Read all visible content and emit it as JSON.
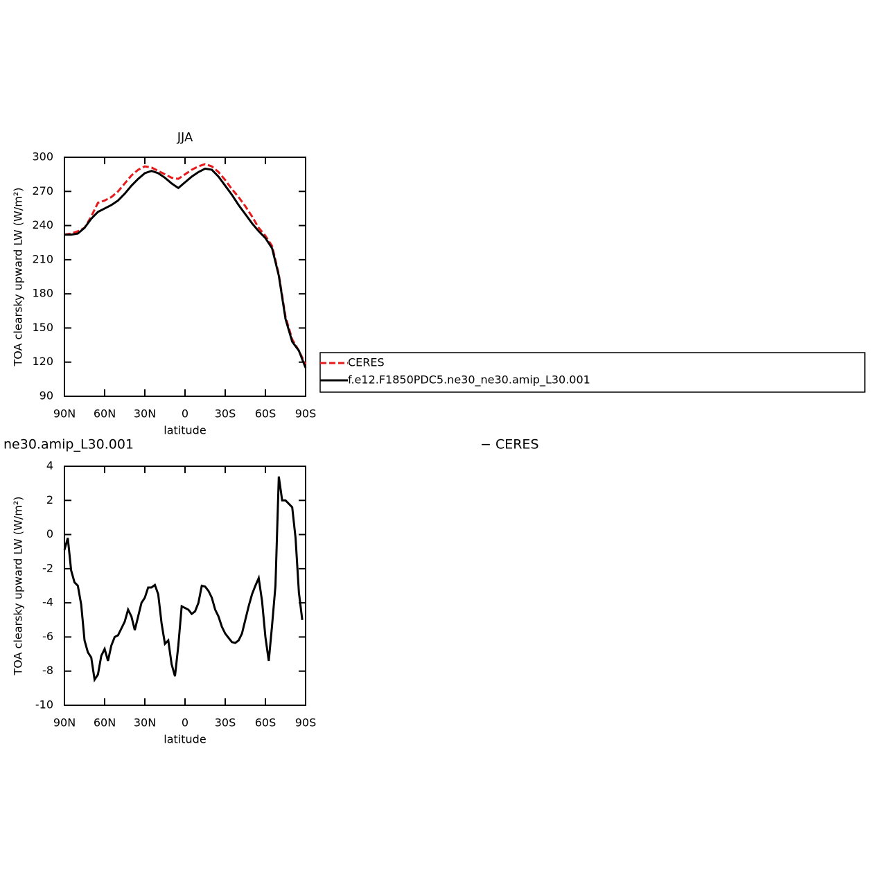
{
  "chart_data": [
    {
      "type": "line",
      "title": "JJA",
      "xlabel": "latitude",
      "ylabel": "TOA clearsky upward LW (W/m²)",
      "x": [
        90,
        85,
        80,
        75,
        70,
        65,
        60,
        55,
        50,
        45,
        40,
        35,
        30,
        25,
        20,
        15,
        10,
        5,
        0,
        -5,
        -10,
        -15,
        -20,
        -25,
        -30,
        -35,
        -40,
        -45,
        -50,
        -55,
        -60,
        -65,
        -70,
        -75,
        -80,
        -85,
        -90
      ],
      "series": [
        {
          "name": "CERES",
          "color": "#e41a1c",
          "style": "dashed",
          "values": [
            232,
            233,
            235,
            238,
            248,
            260,
            262,
            265,
            270,
            277,
            284,
            289,
            292,
            291,
            288,
            285,
            282,
            281,
            285,
            289,
            292,
            294,
            292,
            287,
            280,
            272,
            265,
            257,
            248,
            238,
            231,
            222,
            197,
            160,
            140,
            130,
            118
          ]
        },
        {
          "name": "f.e12.F1850PDC5.ne30_ne30.amip_L30.001",
          "color": "#000000",
          "style": "solid",
          "values": [
            232,
            232,
            233,
            238,
            246,
            252,
            255,
            258,
            262,
            268,
            275,
            281,
            286,
            288,
            286,
            282,
            277,
            273,
            278,
            283,
            287,
            290,
            289,
            283,
            275,
            267,
            258,
            250,
            242,
            235,
            229,
            220,
            196,
            158,
            138,
            130,
            115
          ]
        }
      ],
      "xlim": [
        90,
        -90
      ],
      "xticks": [
        {
          "value": 90,
          "label": "90N"
        },
        {
          "value": 60,
          "label": "60N"
        },
        {
          "value": 30,
          "label": "30N"
        },
        0,
        {
          "value": -30,
          "label": "30S"
        },
        {
          "value": -60,
          "label": "60S"
        },
        {
          "value": -90,
          "label": "90S"
        }
      ],
      "ylim": [
        90,
        300
      ],
      "yticks": [
        90,
        120,
        150,
        180,
        210,
        240,
        270,
        300
      ],
      "legend": "right"
    },
    {
      "type": "line",
      "title": "ne30.amip_L30.001",
      "subtitle": "− CERES",
      "xlabel": "latitude",
      "ylabel": "TOA clearsky upward LW (W/m²)",
      "x": [
        90,
        87.5,
        85,
        82.5,
        80,
        77.5,
        75,
        72.5,
        70,
        67.5,
        65,
        62.5,
        60,
        57.5,
        55,
        52.5,
        50,
        47.5,
        45,
        42.5,
        40,
        37.5,
        35,
        32.5,
        30,
        27.5,
        25,
        22.5,
        20,
        17.5,
        15,
        12.5,
        10,
        7.5,
        5,
        2.5,
        0,
        -2.5,
        -5,
        -7.5,
        -10,
        -12.5,
        -15,
        -17.5,
        -20,
        -22.5,
        -25,
        -27.5,
        -30,
        -32.5,
        -35,
        -37.5,
        -40,
        -42.5,
        -45,
        -47.5,
        -50,
        -52.5,
        -55,
        -57.5,
        -60,
        -62.5,
        -65,
        -67.5,
        -70,
        -72.5,
        -75,
        -77.5,
        -80,
        -82.5,
        -85,
        -87.5
      ],
      "series": [
        {
          "color": "#000000",
          "style": "solid",
          "values": [
            -0.9,
            -0.2,
            -2.1,
            -2.8,
            -3,
            -4.1,
            -6.2,
            -6.9,
            -7.2,
            -8.5,
            -8.2,
            -7.1,
            -6.7,
            -7.4,
            -6.5,
            -6.0,
            -5.9,
            -5.5,
            -5.1,
            -4.4,
            -4.8,
            -5.6,
            -4.8,
            -4.0,
            -3.7,
            -3.1,
            -3.1,
            -2.95,
            -3.5,
            -5.2,
            -6.4,
            -6.2,
            -7.6,
            -8.3,
            -6.5,
            -4.2,
            -4.3,
            -4.4,
            -4.65,
            -4.5,
            -4.0,
            -3.0,
            -3.05,
            -3.3,
            -3.7,
            -4.4,
            -4.8,
            -5.4,
            -5.8,
            -6.05,
            -6.3,
            -6.35,
            -6.2,
            -5.8,
            -5,
            -4.2,
            -3.5,
            -3.0,
            -2.55,
            -3.9,
            -6,
            -7.4,
            -5.3,
            -3.0,
            3.4,
            2.0,
            2.0,
            1.8,
            1.6,
            -0.2,
            -3.4,
            -5.0
          ]
        }
      ],
      "xlim": [
        90,
        -90
      ],
      "xticks": [
        {
          "value": 90,
          "label": "90N"
        },
        {
          "value": 60,
          "label": "60N"
        },
        {
          "value": 30,
          "label": "30N"
        },
        0,
        {
          "value": -30,
          "label": "30S"
        },
        {
          "value": -60,
          "label": "60S"
        },
        {
          "value": -90,
          "label": "90S"
        }
      ],
      "ylim": [
        -10,
        4
      ],
      "yticks": [
        -10,
        -8,
        -6,
        -4,
        -2,
        0,
        2,
        4
      ]
    }
  ]
}
